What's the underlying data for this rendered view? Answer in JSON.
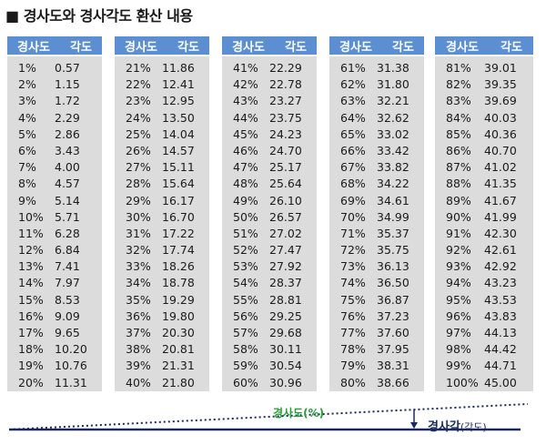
{
  "title": "■ 경사도와 경사각도 환산 내용",
  "headers": {
    "grade": "경사도",
    "angle": "각도"
  },
  "columns": [
    [
      [
        "1%",
        "0.57"
      ],
      [
        "2%",
        "1.15"
      ],
      [
        "3%",
        "1.72"
      ],
      [
        "4%",
        "2.29"
      ],
      [
        "5%",
        "2.86"
      ],
      [
        "6%",
        "3.43"
      ],
      [
        "7%",
        "4.00"
      ],
      [
        "8%",
        "4.57"
      ],
      [
        "9%",
        "5.14"
      ],
      [
        "10%",
        "5.71"
      ],
      [
        "11%",
        "6.28"
      ],
      [
        "12%",
        "6.84"
      ],
      [
        "13%",
        "7.41"
      ],
      [
        "14%",
        "7.97"
      ],
      [
        "15%",
        "8.53"
      ],
      [
        "16%",
        "9.09"
      ],
      [
        "17%",
        "9.65"
      ],
      [
        "18%",
        "10.20"
      ],
      [
        "19%",
        "10.76"
      ],
      [
        "20%",
        "11.31"
      ]
    ],
    [
      [
        "21%",
        "11.86"
      ],
      [
        "22%",
        "12.41"
      ],
      [
        "23%",
        "12.95"
      ],
      [
        "24%",
        "13.50"
      ],
      [
        "25%",
        "14.04"
      ],
      [
        "26%",
        "14.57"
      ],
      [
        "27%",
        "15.11"
      ],
      [
        "28%",
        "15.64"
      ],
      [
        "29%",
        "16.17"
      ],
      [
        "30%",
        "16.70"
      ],
      [
        "31%",
        "17.22"
      ],
      [
        "32%",
        "17.74"
      ],
      [
        "33%",
        "18.26"
      ],
      [
        "34%",
        "18.78"
      ],
      [
        "35%",
        "19.29"
      ],
      [
        "36%",
        "19.80"
      ],
      [
        "37%",
        "20.30"
      ],
      [
        "38%",
        "20.81"
      ],
      [
        "39%",
        "21.31"
      ],
      [
        "40%",
        "21.80"
      ]
    ],
    [
      [
        "41%",
        "22.29"
      ],
      [
        "42%",
        "22.78"
      ],
      [
        "43%",
        "23.27"
      ],
      [
        "44%",
        "23.75"
      ],
      [
        "45%",
        "24.23"
      ],
      [
        "46%",
        "24.70"
      ],
      [
        "47%",
        "25.17"
      ],
      [
        "48%",
        "25.64"
      ],
      [
        "49%",
        "26.10"
      ],
      [
        "50%",
        "26.57"
      ],
      [
        "51%",
        "27.02"
      ],
      [
        "52%",
        "27.47"
      ],
      [
        "53%",
        "27.92"
      ],
      [
        "54%",
        "28.37"
      ],
      [
        "55%",
        "28.81"
      ],
      [
        "56%",
        "29.25"
      ],
      [
        "57%",
        "29.68"
      ],
      [
        "58%",
        "30.11"
      ],
      [
        "59%",
        "30.54"
      ],
      [
        "60%",
        "30.96"
      ]
    ],
    [
      [
        "61%",
        "31.38"
      ],
      [
        "62%",
        "31.80"
      ],
      [
        "63%",
        "32.21"
      ],
      [
        "64%",
        "32.62"
      ],
      [
        "65%",
        "33.02"
      ],
      [
        "66%",
        "33.42"
      ],
      [
        "67%",
        "33.82"
      ],
      [
        "68%",
        "34.22"
      ],
      [
        "69%",
        "34.61"
      ],
      [
        "70%",
        "34.99"
      ],
      [
        "71%",
        "35.37"
      ],
      [
        "72%",
        "35.75"
      ],
      [
        "73%",
        "36.13"
      ],
      [
        "74%",
        "36.50"
      ],
      [
        "75%",
        "36.87"
      ],
      [
        "76%",
        "37.23"
      ],
      [
        "77%",
        "37.60"
      ],
      [
        "78%",
        "37.95"
      ],
      [
        "79%",
        "38.31"
      ],
      [
        "80%",
        "38.66"
      ]
    ],
    [
      [
        "81%",
        "39.01"
      ],
      [
        "82%",
        "39.35"
      ],
      [
        "83%",
        "39.69"
      ],
      [
        "84%",
        "40.03"
      ],
      [
        "85%",
        "40.36"
      ],
      [
        "86%",
        "40.70"
      ],
      [
        "87%",
        "41.02"
      ],
      [
        "88%",
        "41.35"
      ],
      [
        "89%",
        "41.67"
      ],
      [
        "90%",
        "41.99"
      ],
      [
        "91%",
        "42.30"
      ],
      [
        "92%",
        "42.61"
      ],
      [
        "93%",
        "42.92"
      ],
      [
        "94%",
        "43.23"
      ],
      [
        "95%",
        "43.53"
      ],
      [
        "96%",
        "43.83"
      ],
      [
        "97%",
        "44.13"
      ],
      [
        "98%",
        "44.42"
      ],
      [
        "99%",
        "44.71"
      ],
      [
        "100%",
        "45.00"
      ]
    ]
  ],
  "diagram": {
    "grade_label": "경사도(%)",
    "angle_label": "경사각",
    "angle_label_paren": "(각도)"
  },
  "colors": {
    "header": "#5b8fd1",
    "body": "#dcdcdc",
    "green": "#2a9a3c",
    "navy": "#1a2a5a"
  }
}
